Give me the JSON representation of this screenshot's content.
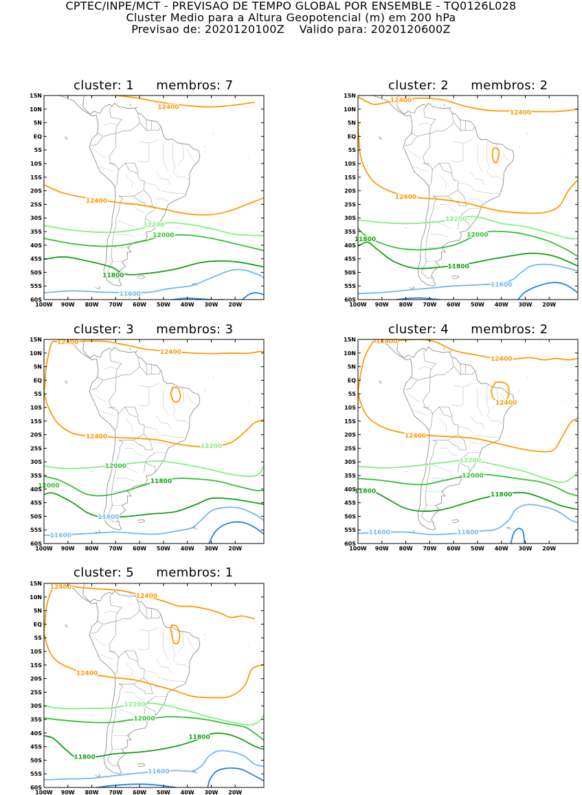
{
  "header": {
    "line1": "CPTEC/INPE/MCT - PREVISAO DE TEMPO GLOBAL POR ENSEMBLE - TQ0126L028",
    "line2": "Cluster Medio para a Altura Geopotencial (m) em 200 hPa",
    "line3": "Previsao de: 2020120100Z    Valido para: 2020120600Z"
  },
  "axes": {
    "lat_labels": [
      "15N",
      "10N",
      "5N",
      "EQ",
      "5S",
      "10S",
      "15S",
      "20S",
      "25S",
      "30S",
      "35S",
      "40S",
      "45S",
      "50S",
      "55S",
      "60S"
    ],
    "lon_labels": [
      "100W",
      "90W",
      "80W",
      "70W",
      "60W",
      "50W",
      "40W",
      "30W",
      "20W"
    ]
  },
  "contour_levels": [
    {
      "value": "12400",
      "color": "#ff9900"
    },
    {
      "value": "12200",
      "color": "#80f080"
    },
    {
      "value": "12000",
      "color": "#30c030"
    },
    {
      "value": "11800",
      "color": "#10a010"
    },
    {
      "value": "11600",
      "color": "#70b8f0"
    },
    {
      "value": "11400",
      "color": "#2080e0"
    }
  ],
  "panels": [
    {
      "cluster_label": "cluster:",
      "cluster_num": "1",
      "members_label": "membros:",
      "members_num": "7",
      "contour_labels": [
        "12400",
        "12400",
        "12200",
        "12000",
        "11800",
        "11600"
      ]
    },
    {
      "cluster_label": "cluster:",
      "cluster_num": "2",
      "members_label": "membros:",
      "members_num": "2",
      "contour_labels": [
        "12400",
        "12400",
        "12400",
        "12200",
        "12000",
        "11800",
        "11800",
        "11600"
      ]
    },
    {
      "cluster_label": "cluster:",
      "cluster_num": "3",
      "members_label": "membros:",
      "members_num": "3",
      "contour_labels": [
        "12400",
        "12400",
        "12400",
        "12200",
        "12000",
        "12000",
        "11800",
        "11600",
        "11600"
      ]
    },
    {
      "cluster_label": "cluster:",
      "cluster_num": "4",
      "members_label": "membros:",
      "members_num": "2",
      "contour_labels": [
        "12400",
        "12400",
        "12400",
        "12400",
        "12200",
        "12000",
        "11800",
        "11800",
        "11600",
        "11600"
      ]
    },
    {
      "cluster_label": "cluster:",
      "cluster_num": "5",
      "members_label": "membros:",
      "members_num": "1",
      "contour_labels": [
        "12400",
        "12400",
        "12400",
        "12200",
        "12000",
        "11800",
        "11800",
        "11600"
      ]
    }
  ]
}
